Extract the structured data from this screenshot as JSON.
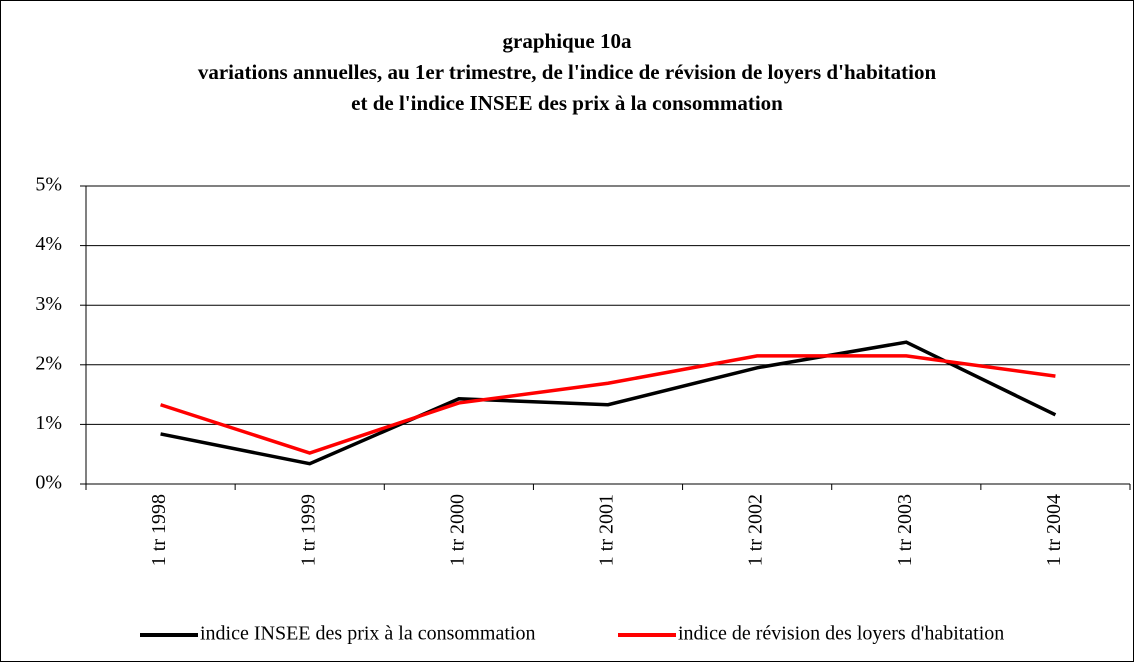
{
  "chart_data": {
    "type": "line",
    "title": [
      "graphique 10a",
      "variations annuelles, au 1er trimestre, de l'indice de révision de loyers d'habitation",
      "et de l'indice INSEE des prix à la consommation"
    ],
    "categories": [
      "1 tr 1998",
      "1 tr 1999",
      "1 tr 2000",
      "1 tr 2001",
      "1 tr 2002",
      "1 tr 2003",
      "1 tr 2004"
    ],
    "series": [
      {
        "name": "indice INSEE des prix à la consommation",
        "color": "#000000",
        "values": [
          0.84,
          0.34,
          1.43,
          1.33,
          1.95,
          2.38,
          1.16
        ]
      },
      {
        "name": "indice de révision des loyers d'habitation",
        "color": "#ff0000",
        "values": [
          1.33,
          0.52,
          1.36,
          1.69,
          2.15,
          2.15,
          1.81
        ]
      }
    ],
    "ylim": [
      0,
      5
    ],
    "yticks": [
      {
        "value": 0,
        "label": "0%"
      },
      {
        "value": 1,
        "label": "1%"
      },
      {
        "value": 2,
        "label": "2%"
      },
      {
        "value": 3,
        "label": "3%"
      },
      {
        "value": 4,
        "label": "4%"
      },
      {
        "value": 5,
        "label": "5%"
      }
    ],
    "grid": true,
    "legend": "bottom"
  }
}
